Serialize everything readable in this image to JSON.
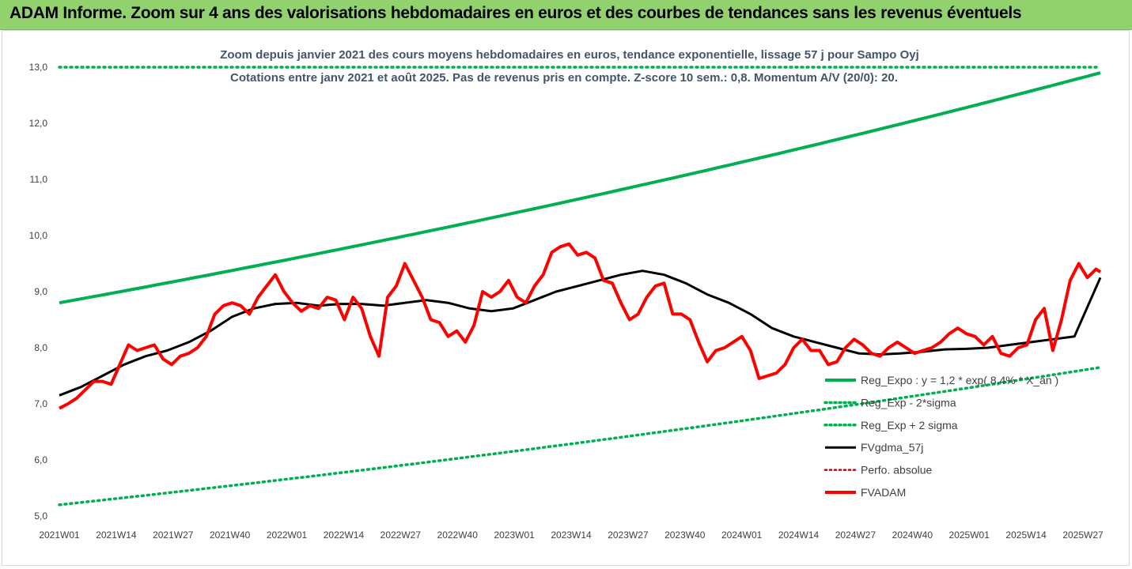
{
  "header": {
    "title": "ADAM Informe. Zoom sur 4 ans des valorisations hebdomadaires en euros et des courbes de tendances sans les revenus éventuels"
  },
  "chart_data": {
    "type": "line",
    "subtitle_line1": "Zoom depuis janvier 2021 des cours moyens hebdomadaires en euros, tendance exponentielle, lissage 57 j pour Sampo Oyj",
    "subtitle_line2": "Cotations entre janv 2021 et août 2025. Pas de revenus pris en compte. Z-score 10 sem.: 0,8. Momentum A/V (20/0): 20.",
    "x_ticks": [
      "2021W01",
      "2021W14",
      "2021W27",
      "2021W40",
      "2022W01",
      "2022W14",
      "2022W27",
      "2022W40",
      "2023W01",
      "2023W14",
      "2023W27",
      "2023W40",
      "2024W01",
      "2024W14",
      "2024W27",
      "2024W40",
      "2025W01",
      "2025W14",
      "2025W27"
    ],
    "y_ticks": [
      "5,0",
      "6,0",
      "7,0",
      "8,0",
      "9,0",
      "10,0",
      "11,0",
      "12,0",
      "13,0"
    ],
    "ylim": [
      5,
      13
    ],
    "weeks": 242,
    "grid": false,
    "legend_position": "bottom-right",
    "legend": [
      {
        "label": "Reg_Expo : y = 1,2 * exp( 8,4% * X_an )",
        "color": "#00b050",
        "style": "solid"
      },
      {
        "label": "Reg_Exp - 2*sigma",
        "color": "#00b050",
        "style": "dotted"
      },
      {
        "label": "Reg_Exp + 2 sigma",
        "color": "#00b050",
        "style": "dotted"
      },
      {
        "label": "FVgdma_57j",
        "color": "#000000",
        "style": "solid"
      },
      {
        "label": "Perfo. absolue",
        "color": "#c00000",
        "style": "dotted"
      },
      {
        "label": "FVADAM",
        "color": "#ff0000",
        "style": "solid"
      }
    ],
    "series": {
      "reg_expo": {
        "start": 8.8,
        "end": 12.9
      },
      "reg_lower": {
        "start": 5.2,
        "end": 7.65
      },
      "reg_upper": {
        "start": 13.0,
        "end": 13.0
      },
      "fvgdma_57j": [
        [
          0,
          7.15
        ],
        [
          5,
          7.3
        ],
        [
          10,
          7.5
        ],
        [
          15,
          7.7
        ],
        [
          20,
          7.85
        ],
        [
          25,
          7.95
        ],
        [
          30,
          8.1
        ],
        [
          35,
          8.3
        ],
        [
          40,
          8.55
        ],
        [
          45,
          8.7
        ],
        [
          50,
          8.78
        ],
        [
          55,
          8.8
        ],
        [
          60,
          8.75
        ],
        [
          65,
          8.78
        ],
        [
          70,
          8.78
        ],
        [
          75,
          8.75
        ],
        [
          80,
          8.8
        ],
        [
          85,
          8.85
        ],
        [
          90,
          8.8
        ],
        [
          95,
          8.7
        ],
        [
          100,
          8.65
        ],
        [
          105,
          8.7
        ],
        [
          110,
          8.85
        ],
        [
          115,
          9.0
        ],
        [
          120,
          9.1
        ],
        [
          125,
          9.2
        ],
        [
          130,
          9.3
        ],
        [
          135,
          9.37
        ],
        [
          140,
          9.3
        ],
        [
          145,
          9.15
        ],
        [
          150,
          8.95
        ],
        [
          155,
          8.8
        ],
        [
          160,
          8.6
        ],
        [
          165,
          8.35
        ],
        [
          170,
          8.2
        ],
        [
          175,
          8.1
        ],
        [
          180,
          8.0
        ],
        [
          185,
          7.9
        ],
        [
          190,
          7.88
        ],
        [
          195,
          7.9
        ],
        [
          200,
          7.93
        ],
        [
          205,
          7.97
        ],
        [
          210,
          7.98
        ],
        [
          215,
          8.0
        ],
        [
          220,
          8.05
        ],
        [
          225,
          8.1
        ],
        [
          230,
          8.15
        ],
        [
          235,
          8.2
        ],
        [
          241,
          9.25
        ]
      ],
      "fvadam": [
        [
          0,
          6.92
        ],
        [
          2,
          7.0
        ],
        [
          4,
          7.1
        ],
        [
          6,
          7.25
        ],
        [
          8,
          7.4
        ],
        [
          10,
          7.4
        ],
        [
          12,
          7.35
        ],
        [
          14,
          7.7
        ],
        [
          16,
          8.05
        ],
        [
          18,
          7.95
        ],
        [
          20,
          8.0
        ],
        [
          22,
          8.05
        ],
        [
          24,
          7.8
        ],
        [
          26,
          7.7
        ],
        [
          28,
          7.85
        ],
        [
          30,
          7.9
        ],
        [
          32,
          8.0
        ],
        [
          34,
          8.2
        ],
        [
          36,
          8.6
        ],
        [
          38,
          8.75
        ],
        [
          40,
          8.8
        ],
        [
          42,
          8.75
        ],
        [
          44,
          8.6
        ],
        [
          46,
          8.9
        ],
        [
          48,
          9.1
        ],
        [
          50,
          9.3
        ],
        [
          52,
          9.0
        ],
        [
          54,
          8.8
        ],
        [
          56,
          8.65
        ],
        [
          58,
          8.75
        ],
        [
          60,
          8.7
        ],
        [
          62,
          8.9
        ],
        [
          64,
          8.85
        ],
        [
          66,
          8.5
        ],
        [
          68,
          8.9
        ],
        [
          70,
          8.7
        ],
        [
          72,
          8.2
        ],
        [
          74,
          7.85
        ],
        [
          76,
          8.9
        ],
        [
          78,
          9.1
        ],
        [
          80,
          9.5
        ],
        [
          82,
          9.2
        ],
        [
          84,
          8.9
        ],
        [
          86,
          8.5
        ],
        [
          88,
          8.45
        ],
        [
          90,
          8.2
        ],
        [
          92,
          8.3
        ],
        [
          94,
          8.1
        ],
        [
          96,
          8.4
        ],
        [
          98,
          9.0
        ],
        [
          100,
          8.9
        ],
        [
          102,
          9.0
        ],
        [
          104,
          9.2
        ],
        [
          106,
          8.9
        ],
        [
          108,
          8.8
        ],
        [
          110,
          9.1
        ],
        [
          112,
          9.3
        ],
        [
          114,
          9.7
        ],
        [
          116,
          9.8
        ],
        [
          118,
          9.85
        ],
        [
          120,
          9.65
        ],
        [
          122,
          9.7
        ],
        [
          124,
          9.6
        ],
        [
          126,
          9.2
        ],
        [
          128,
          9.15
        ],
        [
          130,
          8.8
        ],
        [
          132,
          8.5
        ],
        [
          134,
          8.6
        ],
        [
          136,
          8.9
        ],
        [
          138,
          9.1
        ],
        [
          140,
          9.15
        ],
        [
          142,
          8.6
        ],
        [
          144,
          8.6
        ],
        [
          146,
          8.5
        ],
        [
          148,
          8.1
        ],
        [
          150,
          7.75
        ],
        [
          152,
          7.95
        ],
        [
          154,
          8.0
        ],
        [
          156,
          8.1
        ],
        [
          158,
          8.2
        ],
        [
          160,
          7.95
        ],
        [
          162,
          7.45
        ],
        [
          164,
          7.5
        ],
        [
          166,
          7.55
        ],
        [
          168,
          7.7
        ],
        [
          170,
          8.0
        ],
        [
          172,
          8.15
        ],
        [
          174,
          7.95
        ],
        [
          176,
          7.95
        ],
        [
          178,
          7.7
        ],
        [
          180,
          7.75
        ],
        [
          182,
          8.0
        ],
        [
          184,
          8.15
        ],
        [
          186,
          8.05
        ],
        [
          188,
          7.9
        ],
        [
          190,
          7.85
        ],
        [
          192,
          8.0
        ],
        [
          194,
          8.1
        ],
        [
          196,
          8.0
        ],
        [
          198,
          7.9
        ],
        [
          200,
          7.95
        ],
        [
          202,
          8.0
        ],
        [
          204,
          8.1
        ],
        [
          206,
          8.25
        ],
        [
          208,
          8.35
        ],
        [
          210,
          8.25
        ],
        [
          212,
          8.2
        ],
        [
          214,
          8.05
        ],
        [
          216,
          8.2
        ],
        [
          218,
          7.9
        ],
        [
          220,
          7.85
        ],
        [
          222,
          8.0
        ],
        [
          224,
          8.05
        ],
        [
          226,
          8.5
        ],
        [
          228,
          8.7
        ],
        [
          230,
          7.95
        ],
        [
          232,
          8.5
        ],
        [
          234,
          9.2
        ],
        [
          236,
          9.5
        ],
        [
          238,
          9.25
        ],
        [
          240,
          9.4
        ],
        [
          241,
          9.35
        ]
      ]
    }
  }
}
